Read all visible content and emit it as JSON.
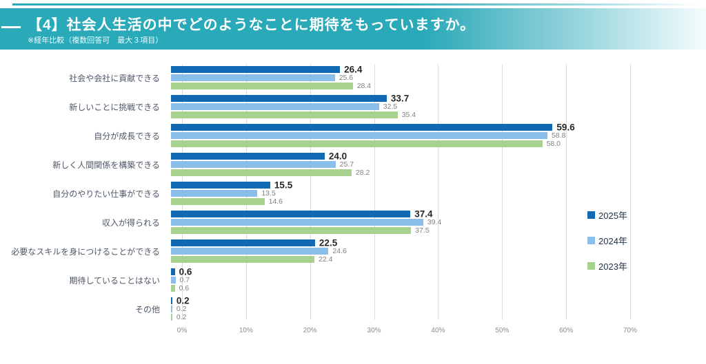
{
  "header": {
    "title": "【4】社会人生活の中でどのようなことに期待をもっていますか。",
    "subtitle": "※経年比較（複数回答可　最大３項目）"
  },
  "colors": {
    "header_teal": "#2aa9b8",
    "gridline": "#dcdcdc",
    "series_2025": "#1168b3",
    "series_2024": "#8abde8",
    "series_2023": "#a9d18e"
  },
  "chart_data": {
    "type": "bar",
    "orientation": "horizontal",
    "title": "【4】社会人生活の中でどのようなことに期待をもっていますか。",
    "note": "※経年比較（複数回答可　最大３項目）",
    "categories": [
      "社会や会社に貢献できる",
      "新しいことに挑戦できる",
      "自分が成長できる",
      "新しく人間関係を構築できる",
      "自分のやりたい仕事ができる",
      "収入が得られる",
      "必要なスキルを身につけることができる",
      "期待していることはない",
      "その他"
    ],
    "series": [
      {
        "name": "2025年",
        "color": "#1168b3",
        "emphasis": true,
        "values": [
          26.4,
          33.7,
          59.6,
          24.0,
          15.5,
          37.4,
          22.5,
          0.6,
          0.2
        ],
        "labels": [
          "26.4",
          "33.7",
          "59.6",
          "24.0",
          "15.5",
          "37.4",
          "22.5",
          "0.6",
          "0.2"
        ]
      },
      {
        "name": "2024年",
        "color": "#8abde8",
        "emphasis": false,
        "values": [
          25.6,
          32.5,
          58.8,
          25.7,
          13.5,
          39.4,
          24.6,
          0.7,
          0.2
        ],
        "labels": [
          "25.6",
          "32.5",
          "58.8",
          "25.7",
          "13.5",
          "39.4",
          "24.6",
          "0.7",
          "0.2"
        ]
      },
      {
        "name": "2023年",
        "color": "#a9d18e",
        "emphasis": false,
        "values": [
          28.4,
          35.4,
          58.0,
          28.2,
          14.6,
          37.5,
          22.4,
          0.6,
          0.2
        ],
        "labels": [
          "28.4",
          "35.4",
          "58.0",
          "28.2",
          "14.6",
          "37.5",
          "22.4",
          "0.6",
          "0.2"
        ]
      }
    ],
    "x_axis": {
      "min": 0,
      "max": 70,
      "ticks": [
        "0%",
        "10%",
        "20%",
        "30%",
        "40%",
        "50%",
        "60%",
        "70%"
      ]
    },
    "grid": true,
    "legend_position": "right"
  }
}
